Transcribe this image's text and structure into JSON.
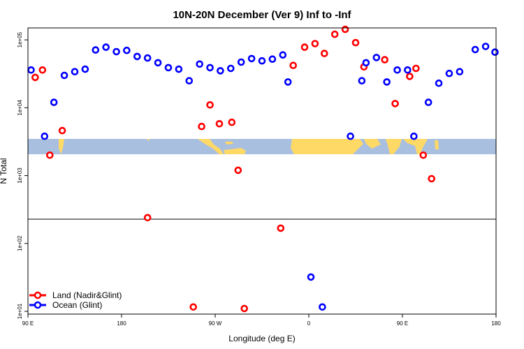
{
  "chart_data": {
    "type": "scatter",
    "title": "10N-20N December (Ver 9)   Inf to -Inf",
    "xlabel": "Longitude (deg E)",
    "ylabel": "N Total",
    "x_ticks": [
      {
        "value": 90,
        "label": "90 E"
      },
      {
        "value": 180,
        "label": "180"
      },
      {
        "value": 270,
        "label": "90 W"
      },
      {
        "value": 360,
        "label": "0"
      },
      {
        "value": 450,
        "label": "90 E"
      },
      {
        "value": 540,
        "label": "180"
      }
    ],
    "y_ticks": [
      {
        "value": 10,
        "label": "1e+01"
      },
      {
        "value": 100,
        "label": "1e+02"
      },
      {
        "value": 1000,
        "label": "1e+03"
      },
      {
        "value": 10000,
        "label": "1e+04"
      },
      {
        "value": 100000,
        "label": "1e+05"
      }
    ],
    "xlim": [
      90,
      540
    ],
    "ylim": [
      9.1,
      150000
    ],
    "log_y": true,
    "colors": {
      "land": "#ff0000",
      "ocean": "#0000ff",
      "sea": "#a8bfe0",
      "landmass": "#ffd966"
    },
    "legend": {
      "position": "bottom-left",
      "entries": [
        {
          "label": "Land (Nadir&Glint)",
          "color": "#ff0000"
        },
        {
          "label": "Ocean (Glint)",
          "color": "#0000ff"
        }
      ]
    },
    "series": [
      {
        "name": "Land (Nadir&Glint)",
        "color": "#ff0000",
        "points": [
          {
            "x": 97,
            "y": 28000
          },
          {
            "x": 104,
            "y": 36000
          },
          {
            "x": 111,
            "y": 2000
          },
          {
            "x": 123,
            "y": 4600
          },
          {
            "x": 205,
            "y": 240
          },
          {
            "x": 249,
            "y": 11.6
          },
          {
            "x": 257,
            "y": 5300
          },
          {
            "x": 265,
            "y": 11000
          },
          {
            "x": 274,
            "y": 5800
          },
          {
            "x": 286,
            "y": 6100
          },
          {
            "x": 292,
            "y": 1200
          },
          {
            "x": 298,
            "y": 11
          },
          {
            "x": 333,
            "y": 168
          },
          {
            "x": 345,
            "y": 42000
          },
          {
            "x": 356,
            "y": 78000
          },
          {
            "x": 366,
            "y": 88000
          },
          {
            "x": 375,
            "y": 63000
          },
          {
            "x": 385,
            "y": 121000
          },
          {
            "x": 395,
            "y": 143000
          },
          {
            "x": 405,
            "y": 91000
          },
          {
            "x": 413,
            "y": 40000
          },
          {
            "x": 433,
            "y": 51000
          },
          {
            "x": 443,
            "y": 11500
          },
          {
            "x": 457,
            "y": 29000
          },
          {
            "x": 463,
            "y": 38000
          },
          {
            "x": 470,
            "y": 2000
          },
          {
            "x": 478,
            "y": 900
          }
        ]
      },
      {
        "name": "Ocean (Glint)",
        "color": "#0000ff",
        "points": [
          {
            "x": 93,
            "y": 36000
          },
          {
            "x": 106,
            "y": 3800
          },
          {
            "x": 115,
            "y": 12000
          },
          {
            "x": 125,
            "y": 30000
          },
          {
            "x": 135,
            "y": 34000
          },
          {
            "x": 145,
            "y": 37000
          },
          {
            "x": 155,
            "y": 71000
          },
          {
            "x": 165,
            "y": 78000
          },
          {
            "x": 175,
            "y": 67000
          },
          {
            "x": 185,
            "y": 70000
          },
          {
            "x": 195,
            "y": 57000
          },
          {
            "x": 205,
            "y": 54000
          },
          {
            "x": 215,
            "y": 46000
          },
          {
            "x": 225,
            "y": 39000
          },
          {
            "x": 235,
            "y": 37000
          },
          {
            "x": 245,
            "y": 25000
          },
          {
            "x": 255,
            "y": 44000
          },
          {
            "x": 265,
            "y": 39000
          },
          {
            "x": 275,
            "y": 35000
          },
          {
            "x": 285,
            "y": 38000
          },
          {
            "x": 295,
            "y": 47000
          },
          {
            "x": 305,
            "y": 53000
          },
          {
            "x": 315,
            "y": 49000
          },
          {
            "x": 325,
            "y": 52000
          },
          {
            "x": 335,
            "y": 60000
          },
          {
            "x": 340,
            "y": 24000
          },
          {
            "x": 362,
            "y": 32
          },
          {
            "x": 373,
            "y": 11.6
          },
          {
            "x": 400,
            "y": 3800
          },
          {
            "x": 411,
            "y": 25000
          },
          {
            "x": 415,
            "y": 46000
          },
          {
            "x": 425,
            "y": 55000
          },
          {
            "x": 435,
            "y": 24000
          },
          {
            "x": 445,
            "y": 36000
          },
          {
            "x": 455,
            "y": 36000
          },
          {
            "x": 461,
            "y": 3800
          },
          {
            "x": 475,
            "y": 12000
          },
          {
            "x": 485,
            "y": 23000
          },
          {
            "x": 495,
            "y": 32000
          },
          {
            "x": 505,
            "y": 34000
          },
          {
            "x": 520,
            "y": 72000
          },
          {
            "x": 530,
            "y": 80000
          },
          {
            "x": 539,
            "y": 66000
          }
        ]
      }
    ]
  }
}
